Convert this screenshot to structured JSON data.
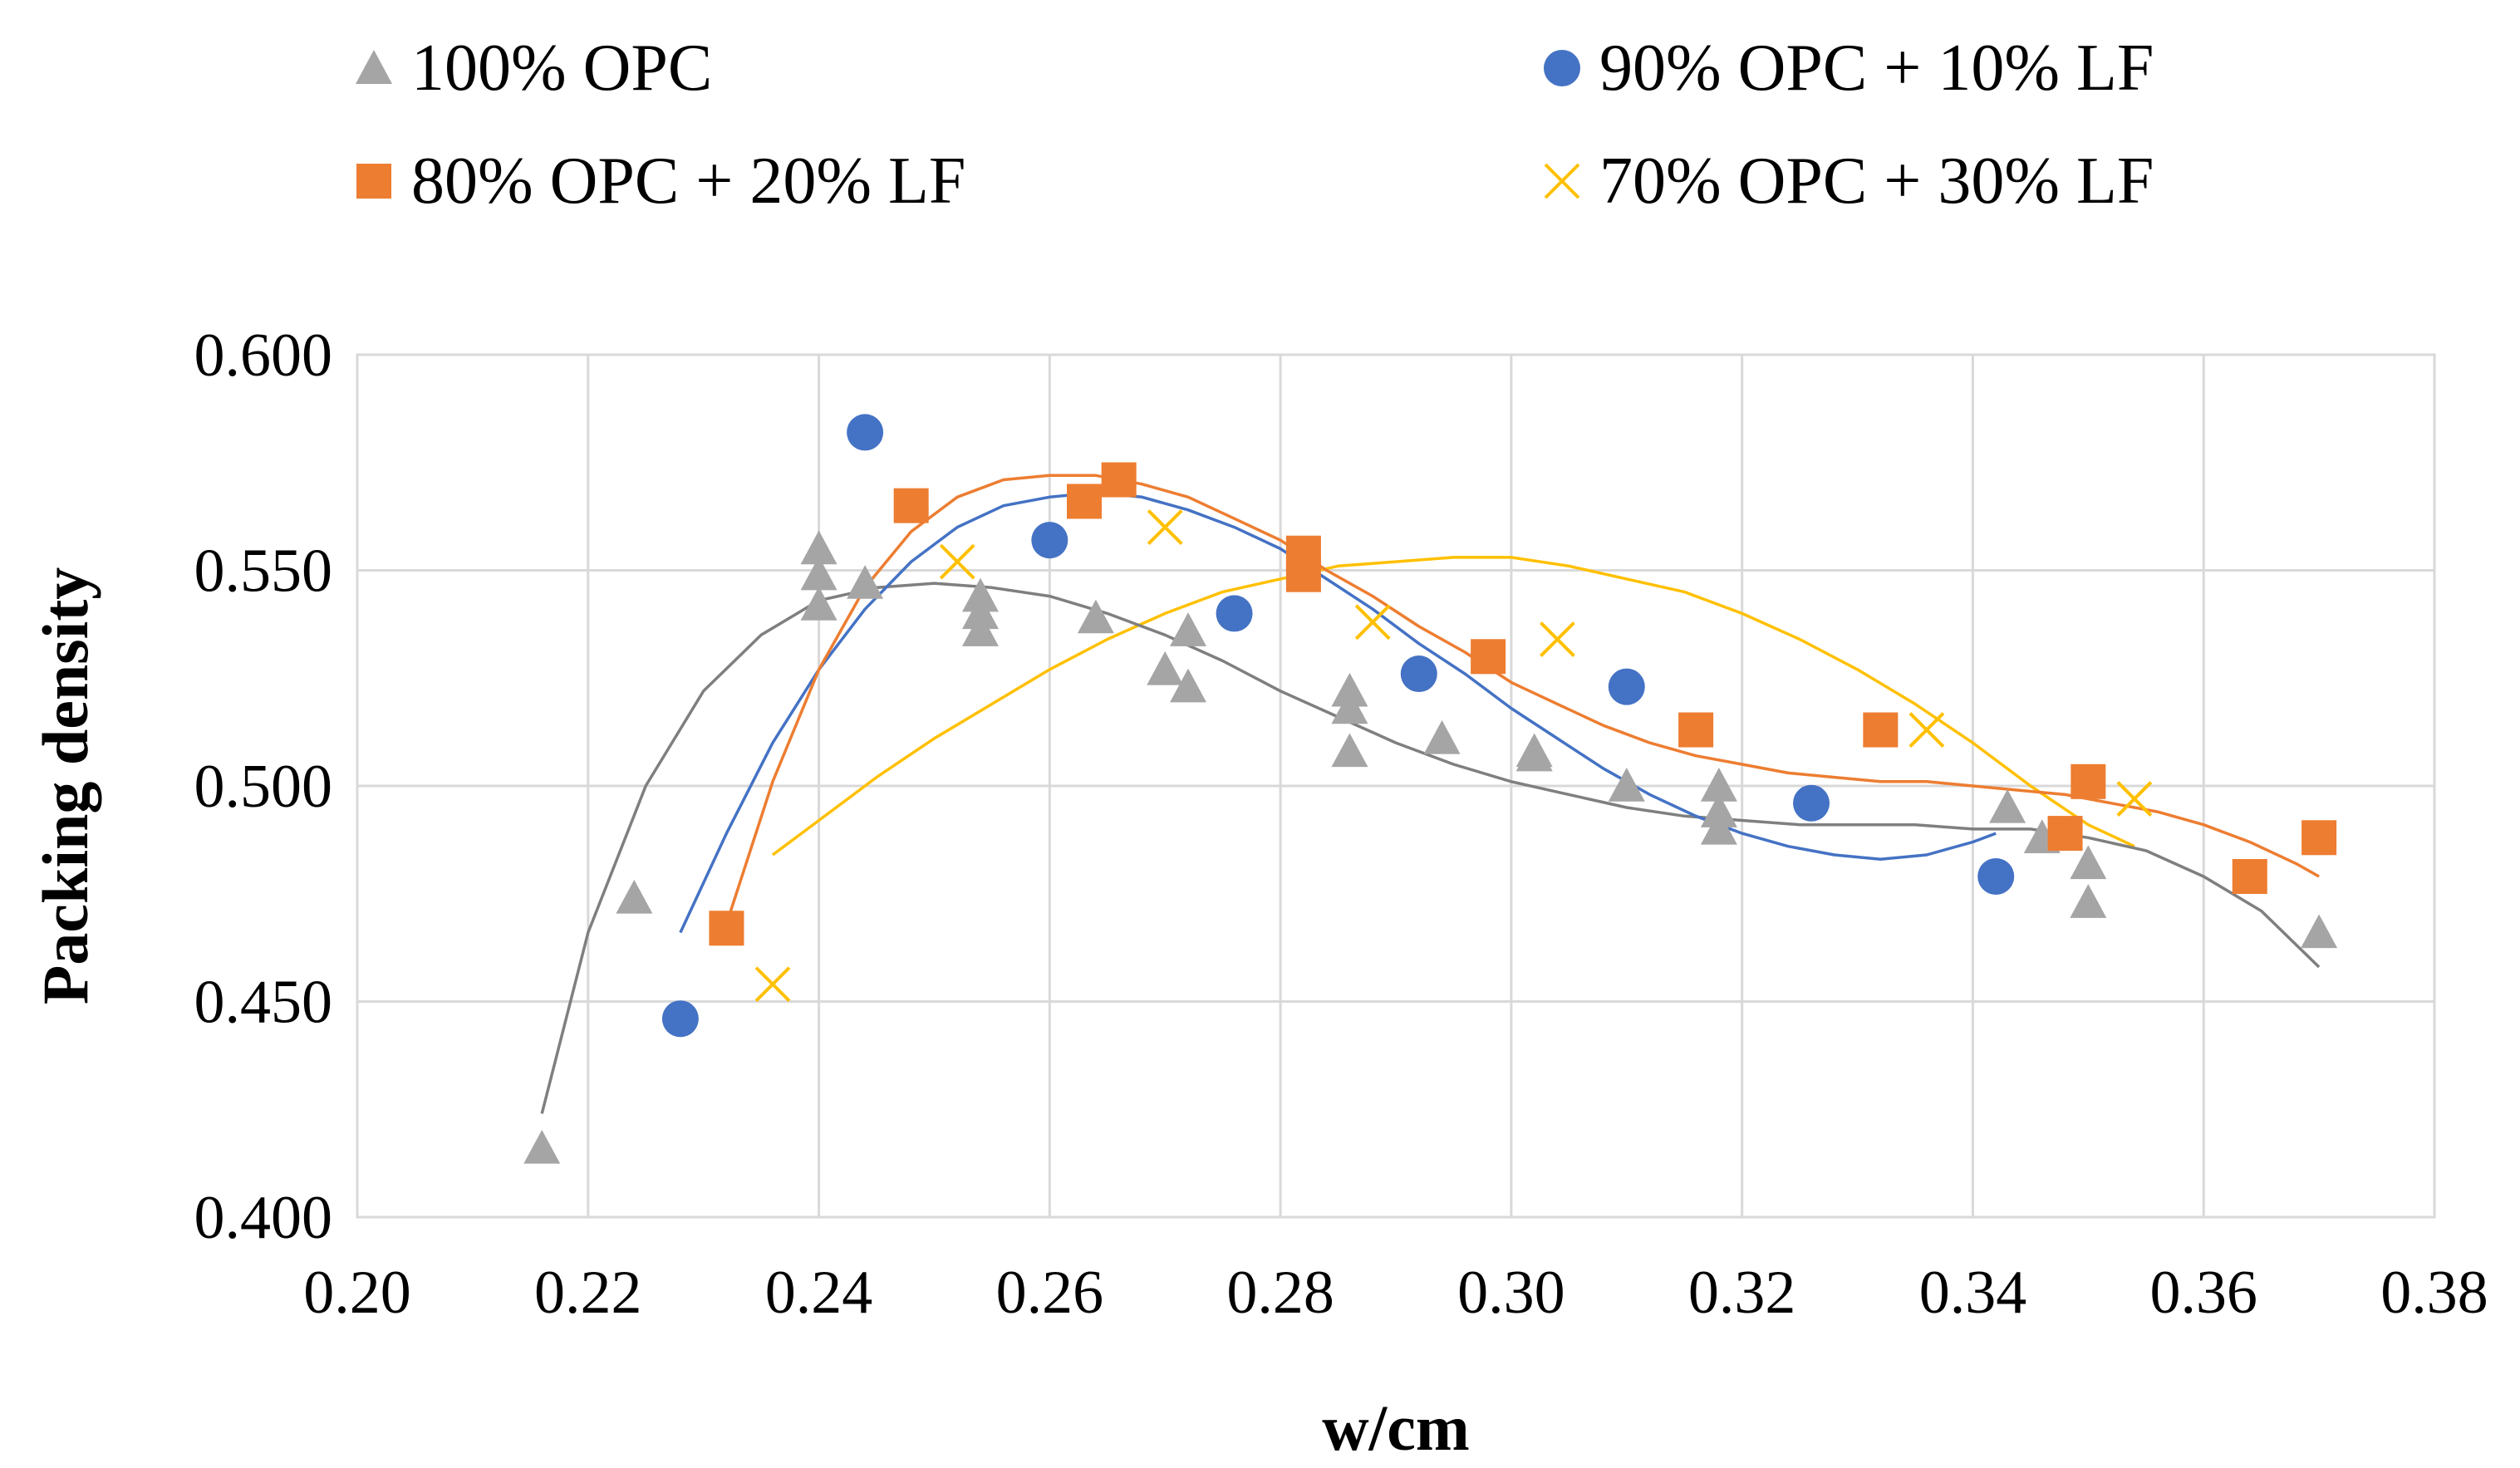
{
  "chart_data": {
    "type": "scatter",
    "title": "",
    "xlabel": "w/cm",
    "ylabel": "Packing density",
    "xlim": [
      0.2,
      0.38
    ],
    "ylim": [
      0.4,
      0.6
    ],
    "xticks": [
      "0.20",
      "0.22",
      "0.24",
      "0.26",
      "0.28",
      "0.30",
      "0.32",
      "0.34",
      "0.36",
      "0.38"
    ],
    "yticks": [
      "0.400",
      "0.450",
      "0.500",
      "0.550",
      "0.600"
    ],
    "grid": true,
    "legend_position": "top",
    "series": [
      {
        "name": "100% OPC",
        "marker": "triangle",
        "color": "#A5A5A5",
        "trend_color": "#7F7F7F",
        "points": [
          [
            0.216,
            0.416
          ],
          [
            0.224,
            0.474
          ],
          [
            0.24,
            0.555
          ],
          [
            0.24,
            0.549
          ],
          [
            0.24,
            0.542
          ],
          [
            0.244,
            0.547
          ],
          [
            0.254,
            0.544
          ],
          [
            0.254,
            0.54
          ],
          [
            0.254,
            0.536
          ],
          [
            0.264,
            0.539
          ],
          [
            0.27,
            0.527
          ],
          [
            0.272,
            0.536
          ],
          [
            0.272,
            0.523
          ],
          [
            0.286,
            0.522
          ],
          [
            0.286,
            0.518
          ],
          [
            0.286,
            0.508
          ],
          [
            0.294,
            0.511
          ],
          [
            0.302,
            0.508
          ],
          [
            0.302,
            0.507
          ],
          [
            0.31,
            0.5
          ],
          [
            0.318,
            0.5
          ],
          [
            0.318,
            0.494
          ],
          [
            0.318,
            0.49
          ],
          [
            0.343,
            0.495
          ],
          [
            0.346,
            0.488
          ],
          [
            0.35,
            0.482
          ],
          [
            0.35,
            0.473
          ],
          [
            0.37,
            0.466
          ]
        ],
        "trendline": [
          [
            0.216,
            0.424
          ],
          [
            0.22,
            0.466
          ],
          [
            0.225,
            0.5
          ],
          [
            0.23,
            0.522
          ],
          [
            0.235,
            0.535
          ],
          [
            0.24,
            0.543
          ],
          [
            0.245,
            0.546
          ],
          [
            0.25,
            0.547
          ],
          [
            0.255,
            0.546
          ],
          [
            0.26,
            0.544
          ],
          [
            0.265,
            0.54
          ],
          [
            0.27,
            0.535
          ],
          [
            0.275,
            0.529
          ],
          [
            0.28,
            0.522
          ],
          [
            0.285,
            0.516
          ],
          [
            0.29,
            0.51
          ],
          [
            0.295,
            0.505
          ],
          [
            0.3,
            0.501
          ],
          [
            0.305,
            0.498
          ],
          [
            0.31,
            0.495
          ],
          [
            0.315,
            0.493
          ],
          [
            0.32,
            0.492
          ],
          [
            0.325,
            0.491
          ],
          [
            0.33,
            0.491
          ],
          [
            0.335,
            0.491
          ],
          [
            0.34,
            0.49
          ],
          [
            0.345,
            0.49
          ],
          [
            0.35,
            0.488
          ],
          [
            0.355,
            0.485
          ],
          [
            0.36,
            0.479
          ],
          [
            0.365,
            0.471
          ],
          [
            0.37,
            0.458
          ]
        ]
      },
      {
        "name": "90% OPC + 10% LF",
        "marker": "circle",
        "color": "#4472C4",
        "trend_color": "#4472C4",
        "points": [
          [
            0.228,
            0.446
          ],
          [
            0.244,
            0.582
          ],
          [
            0.26,
            0.557
          ],
          [
            0.276,
            0.54
          ],
          [
            0.292,
            0.526
          ],
          [
            0.31,
            0.523
          ],
          [
            0.326,
            0.496
          ],
          [
            0.342,
            0.479
          ]
        ],
        "trendline": [
          [
            0.228,
            0.466
          ],
          [
            0.232,
            0.489
          ],
          [
            0.236,
            0.51
          ],
          [
            0.24,
            0.527
          ],
          [
            0.244,
            0.541
          ],
          [
            0.248,
            0.552
          ],
          [
            0.252,
            0.56
          ],
          [
            0.256,
            0.565
          ],
          [
            0.26,
            0.567
          ],
          [
            0.264,
            0.568
          ],
          [
            0.268,
            0.567
          ],
          [
            0.272,
            0.564
          ],
          [
            0.276,
            0.56
          ],
          [
            0.28,
            0.555
          ],
          [
            0.284,
            0.548
          ],
          [
            0.288,
            0.541
          ],
          [
            0.292,
            0.533
          ],
          [
            0.296,
            0.526
          ],
          [
            0.3,
            0.518
          ],
          [
            0.304,
            0.511
          ],
          [
            0.308,
            0.504
          ],
          [
            0.312,
            0.498
          ],
          [
            0.316,
            0.493
          ],
          [
            0.32,
            0.489
          ],
          [
            0.324,
            0.486
          ],
          [
            0.328,
            0.484
          ],
          [
            0.332,
            0.483
          ],
          [
            0.336,
            0.484
          ],
          [
            0.34,
            0.487
          ],
          [
            0.342,
            0.489
          ]
        ]
      },
      {
        "name": "80% OPC + 20% LF",
        "marker": "square",
        "color": "#ED7D31",
        "trend_color": "#ED7D31",
        "points": [
          [
            0.232,
            0.467
          ],
          [
            0.248,
            0.565
          ],
          [
            0.263,
            0.566
          ],
          [
            0.266,
            0.571
          ],
          [
            0.282,
            0.554
          ],
          [
            0.282,
            0.549
          ],
          [
            0.298,
            0.53
          ],
          [
            0.316,
            0.513
          ],
          [
            0.332,
            0.513
          ],
          [
            0.348,
            0.489
          ],
          [
            0.35,
            0.501
          ],
          [
            0.364,
            0.479
          ],
          [
            0.37,
            0.488
          ]
        ],
        "trendline": [
          [
            0.232,
            0.468
          ],
          [
            0.236,
            0.501
          ],
          [
            0.24,
            0.527
          ],
          [
            0.244,
            0.546
          ],
          [
            0.248,
            0.559
          ],
          [
            0.252,
            0.567
          ],
          [
            0.256,
            0.571
          ],
          [
            0.26,
            0.572
          ],
          [
            0.264,
            0.572
          ],
          [
            0.268,
            0.57
          ],
          [
            0.272,
            0.567
          ],
          [
            0.276,
            0.562
          ],
          [
            0.28,
            0.557
          ],
          [
            0.284,
            0.55
          ],
          [
            0.288,
            0.544
          ],
          [
            0.292,
            0.537
          ],
          [
            0.296,
            0.531
          ],
          [
            0.3,
            0.524
          ],
          [
            0.304,
            0.519
          ],
          [
            0.308,
            0.514
          ],
          [
            0.312,
            0.51
          ],
          [
            0.316,
            0.507
          ],
          [
            0.32,
            0.505
          ],
          [
            0.324,
            0.503
          ],
          [
            0.328,
            0.502
          ],
          [
            0.332,
            0.501
          ],
          [
            0.336,
            0.501
          ],
          [
            0.34,
            0.5
          ],
          [
            0.344,
            0.499
          ],
          [
            0.348,
            0.498
          ],
          [
            0.352,
            0.496
          ],
          [
            0.356,
            0.494
          ],
          [
            0.36,
            0.491
          ],
          [
            0.364,
            0.487
          ],
          [
            0.368,
            0.482
          ],
          [
            0.37,
            0.479
          ]
        ]
      },
      {
        "name": "70% OPC + 30% LF",
        "marker": "x",
        "color": "#FFC000",
        "trend_color": "#FFC000",
        "points": [
          [
            0.236,
            0.454
          ],
          [
            0.252,
            0.552
          ],
          [
            0.27,
            0.56
          ],
          [
            0.288,
            0.538
          ],
          [
            0.304,
            0.534
          ],
          [
            0.336,
            0.513
          ],
          [
            0.354,
            0.497
          ]
        ],
        "trendline": [
          [
            0.236,
            0.484
          ],
          [
            0.24,
            0.492
          ],
          [
            0.245,
            0.502
          ],
          [
            0.25,
            0.511
          ],
          [
            0.255,
            0.519
          ],
          [
            0.26,
            0.527
          ],
          [
            0.265,
            0.534
          ],
          [
            0.27,
            0.54
          ],
          [
            0.275,
            0.545
          ],
          [
            0.28,
            0.548
          ],
          [
            0.285,
            0.551
          ],
          [
            0.29,
            0.552
          ],
          [
            0.295,
            0.553
          ],
          [
            0.3,
            0.553
          ],
          [
            0.305,
            0.551
          ],
          [
            0.31,
            0.548
          ],
          [
            0.315,
            0.545
          ],
          [
            0.32,
            0.54
          ],
          [
            0.325,
            0.534
          ],
          [
            0.33,
            0.527
          ],
          [
            0.335,
            0.519
          ],
          [
            0.34,
            0.51
          ],
          [
            0.345,
            0.5
          ],
          [
            0.35,
            0.491
          ],
          [
            0.354,
            0.486
          ]
        ]
      }
    ]
  }
}
